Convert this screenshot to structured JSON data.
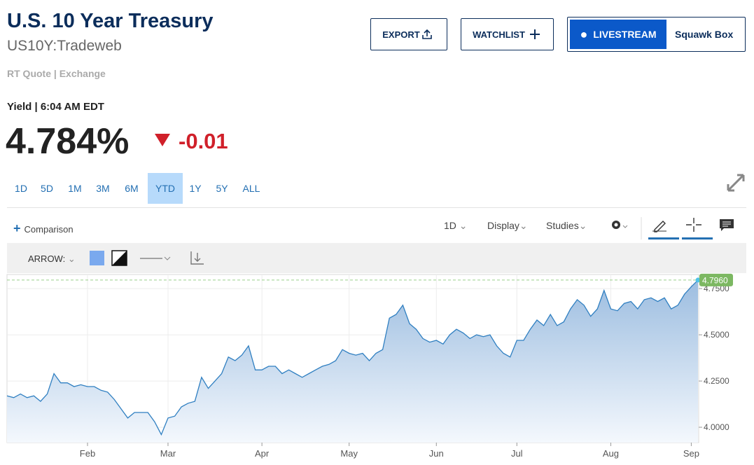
{
  "header": {
    "title": "U.S. 10 Year Treasury",
    "symbol": "US10Y:Tradeweb",
    "quote_source": "RT Quote | Exchange",
    "yield_label": "Yield | 6:04 AM EDT",
    "price": "4.784%",
    "change": "-0.01"
  },
  "buttons": {
    "export": "EXPORT",
    "watchlist": "WATCHLIST",
    "livestream": "LIVESTREAM",
    "squawk": "Squawk Box"
  },
  "ranges": {
    "items": [
      "1D",
      "5D",
      "1M",
      "3M",
      "6M",
      "YTD",
      "1Y",
      "5Y",
      "ALL"
    ],
    "active": "YTD"
  },
  "toolbar": {
    "comparison": "Comparison",
    "interval": "1D",
    "display": "Display",
    "studies": "Studies"
  },
  "drawing": {
    "tool": "ARROW:"
  },
  "chart_data": {
    "type": "area",
    "color": "#2f7fc1",
    "grid": true,
    "ylim": [
      3.917,
      4.826
    ],
    "yticks": [
      {
        "value": 4,
        "label": "4.0000"
      },
      {
        "value": 4.25,
        "label": "4.2500"
      },
      {
        "value": 4.5,
        "label": "4.5000"
      },
      {
        "value": 4.75,
        "label": "4.7500"
      }
    ],
    "categories": [
      null,
      null,
      null,
      null,
      null,
      null,
      null,
      null,
      null,
      null,
      null,
      null,
      "Feb",
      null,
      null,
      null,
      null,
      null,
      null,
      null,
      null,
      null,
      null,
      null,
      "Mar",
      null,
      null,
      null,
      null,
      null,
      null,
      null,
      null,
      null,
      null,
      null,
      null,
      null,
      "Apr",
      null,
      null,
      null,
      null,
      null,
      null,
      null,
      null,
      null,
      null,
      null,
      null,
      "May",
      null,
      null,
      null,
      null,
      null,
      null,
      null,
      null,
      null,
      null,
      null,
      null,
      "Jun",
      null,
      null,
      null,
      null,
      null,
      null,
      null,
      null,
      null,
      null,
      null,
      "Jul",
      null,
      null,
      null,
      null,
      null,
      null,
      null,
      null,
      null,
      null,
      null,
      null,
      null,
      "Aug",
      null,
      null,
      null,
      null,
      null,
      null,
      null,
      null,
      null,
      null,
      null,
      "Sep",
      null
    ],
    "series": [
      {
        "name": "US10Y",
        "color": "#2f7fc1",
        "values": [
          4.17,
          4.16,
          4.18,
          4.16,
          4.17,
          4.14,
          4.18,
          4.29,
          4.24,
          4.24,
          4.22,
          4.23,
          4.22,
          4.22,
          4.2,
          4.19,
          4.15,
          4.1,
          4.05,
          4.08,
          4.08,
          4.08,
          4.03,
          3.96,
          4.05,
          4.06,
          4.11,
          4.13,
          4.14,
          4.27,
          4.21,
          4.25,
          4.29,
          4.38,
          4.36,
          4.39,
          4.44,
          4.31,
          4.31,
          4.33,
          4.33,
          4.29,
          4.31,
          4.29,
          4.27,
          4.29,
          4.31,
          4.33,
          4.34,
          4.36,
          4.42,
          4.4,
          4.39,
          4.4,
          4.36,
          4.4,
          4.42,
          4.59,
          4.61,
          4.66,
          4.56,
          4.53,
          4.48,
          4.46,
          4.47,
          4.45,
          4.5,
          4.53,
          4.51,
          4.48,
          4.5,
          4.49,
          4.5,
          4.44,
          4.4,
          4.38,
          4.47,
          4.47,
          4.53,
          4.58,
          4.55,
          4.61,
          4.55,
          4.57,
          4.64,
          4.69,
          4.66,
          4.6,
          4.64,
          4.74,
          4.64,
          4.63,
          4.67,
          4.68,
          4.64,
          4.69,
          4.7,
          4.68,
          4.7,
          4.64,
          4.66,
          4.72,
          4.76,
          4.796
        ],
        "value_labels": [
          null,
          null,
          null,
          null,
          null,
          null,
          null,
          null,
          null,
          null,
          null,
          null,
          null,
          null,
          null,
          null,
          null,
          null,
          null,
          null,
          null,
          null,
          null,
          null,
          null,
          null,
          null,
          null,
          null,
          null,
          null,
          null,
          null,
          null,
          null,
          null,
          null,
          null,
          null,
          null,
          null,
          null,
          null,
          null,
          null,
          null,
          null,
          null,
          null,
          null,
          null,
          null,
          null,
          null,
          null,
          null,
          null,
          null,
          null,
          null,
          null,
          null,
          null,
          null,
          null,
          null,
          null,
          null,
          null,
          null,
          null,
          null,
          null,
          null,
          null,
          null,
          null,
          null,
          null,
          null,
          null,
          null,
          null,
          null,
          null,
          null,
          null,
          null,
          null,
          null,
          null,
          null,
          null,
          null,
          null,
          null,
          null,
          null,
          null,
          null,
          null,
          null,
          null,
          "4.7960"
        ]
      }
    ]
  }
}
